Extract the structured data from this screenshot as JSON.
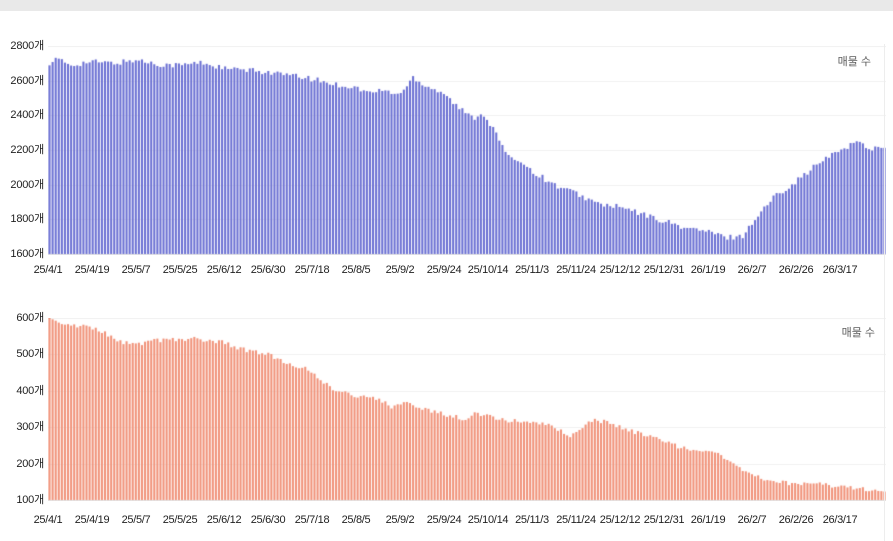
{
  "page": {
    "background": "#ffffff",
    "top_strip_color": "#e9e9e9"
  },
  "chart_data": [
    {
      "type": "bar",
      "title": "",
      "legend": "매물 수",
      "legend_position": "top-right",
      "unit": "개",
      "bar_color": "#696ed2",
      "grid": true,
      "ylim": [
        1600,
        2800
      ],
      "y_ticks": [
        1600,
        1800,
        2000,
        2200,
        2400,
        2600,
        2800
      ],
      "x_tick_labels": [
        "25/4/1",
        "25/4/19",
        "25/5/7",
        "25/5/25",
        "25/6/12",
        "25/6/30",
        "25/7/18",
        "25/8/5",
        "25/9/2",
        "25/9/24",
        "25/10/14",
        "25/11/3",
        "25/11/24",
        "25/12/12",
        "25/12/31",
        "26/1/19",
        "26/2/7",
        "26/2/26",
        "26/3/17"
      ],
      "anchors_unit": "x-tick-index (daily bars interpolated between anchors)",
      "anchors": [
        [
          0,
          2700
        ],
        [
          0.2,
          2725
        ],
        [
          0.5,
          2690
        ],
        [
          1,
          2710
        ],
        [
          1.5,
          2700
        ],
        [
          2,
          2720
        ],
        [
          2.5,
          2695
        ],
        [
          3,
          2690
        ],
        [
          3.5,
          2705
        ],
        [
          4,
          2670
        ],
        [
          4.5,
          2660
        ],
        [
          5,
          2650
        ],
        [
          5.5,
          2630
        ],
        [
          6,
          2610
        ],
        [
          6.5,
          2580
        ],
        [
          7,
          2560
        ],
        [
          7.3,
          2530
        ],
        [
          7.6,
          2545
        ],
        [
          8,
          2520
        ],
        [
          8.3,
          2620
        ],
        [
          8.6,
          2570
        ],
        [
          9,
          2530
        ],
        [
          9.3,
          2450
        ],
        [
          9.65,
          2385
        ],
        [
          9.9,
          2410
        ],
        [
          10.1,
          2330
        ],
        [
          10.3,
          2240
        ],
        [
          10.5,
          2140
        ],
        [
          10.7,
          2150
        ],
        [
          11,
          2080
        ],
        [
          11.5,
          2000
        ],
        [
          12,
          1950
        ],
        [
          12.5,
          1890
        ],
        [
          13,
          1870
        ],
        [
          13.5,
          1830
        ],
        [
          14,
          1790
        ],
        [
          14.5,
          1750
        ],
        [
          15,
          1730
        ],
        [
          15.4,
          1695
        ],
        [
          15.8,
          1705
        ],
        [
          16,
          1780
        ],
        [
          16.5,
          1930
        ],
        [
          17,
          2020
        ],
        [
          17.5,
          2120
        ],
        [
          18,
          2200
        ],
        [
          18.4,
          2250
        ],
        [
          18.7,
          2205
        ],
        [
          19.05,
          2230
        ]
      ],
      "bar_count": 272,
      "noise_amplitude": 16
    },
    {
      "type": "bar",
      "title": "",
      "legend": "매물 수",
      "legend_position": "top-right",
      "unit": "개",
      "bar_color": "#f09178",
      "grid": true,
      "ylim": [
        100,
        600
      ],
      "y_ticks": [
        100,
        200,
        300,
        400,
        500,
        600
      ],
      "x_tick_labels": [
        "25/4/1",
        "25/4/19",
        "25/5/7",
        "25/5/25",
        "25/6/12",
        "25/6/30",
        "25/7/18",
        "25/8/5",
        "25/9/2",
        "25/9/24",
        "25/10/14",
        "25/11/3",
        "25/11/24",
        "25/12/12",
        "25/12/31",
        "26/1/19",
        "26/2/7",
        "26/2/26",
        "26/3/17"
      ],
      "anchors_unit": "x-tick-index (daily bars interpolated between anchors)",
      "anchors": [
        [
          0,
          598
        ],
        [
          0.3,
          585
        ],
        [
          0.5,
          580
        ],
        [
          1,
          575
        ],
        [
          1.3,
          558
        ],
        [
          1.6,
          535
        ],
        [
          2,
          525
        ],
        [
          2.4,
          537
        ],
        [
          3,
          540
        ],
        [
          3.3,
          545
        ],
        [
          3.6,
          538
        ],
        [
          4,
          533
        ],
        [
          4.4,
          515
        ],
        [
          4.8,
          505
        ],
        [
          5,
          500
        ],
        [
          5.4,
          480
        ],
        [
          5.8,
          463
        ],
        [
          6,
          455
        ],
        [
          6.3,
          420
        ],
        [
          6.6,
          397
        ],
        [
          7,
          387
        ],
        [
          7.5,
          380
        ],
        [
          7.8,
          357
        ],
        [
          8.1,
          372
        ],
        [
          8.5,
          350
        ],
        [
          9,
          335
        ],
        [
          9.5,
          322
        ],
        [
          9.7,
          338
        ],
        [
          10,
          330
        ],
        [
          10.5,
          318
        ],
        [
          11,
          315
        ],
        [
          11.5,
          300
        ],
        [
          11.85,
          276
        ],
        [
          12.1,
          300
        ],
        [
          12.4,
          318
        ],
        [
          12.8,
          314
        ],
        [
          13,
          300
        ],
        [
          13.5,
          280
        ],
        [
          14,
          260
        ],
        [
          14.5,
          240
        ],
        [
          15,
          228
        ],
        [
          15.2,
          233
        ],
        [
          15.5,
          208
        ],
        [
          16,
          165
        ],
        [
          16.3,
          158
        ],
        [
          16.6,
          150
        ],
        [
          17,
          142
        ],
        [
          17.3,
          150
        ],
        [
          17.6,
          145
        ],
        [
          18,
          136
        ],
        [
          18.5,
          130
        ],
        [
          19.05,
          129
        ]
      ],
      "bar_count": 272,
      "noise_amplitude": 6
    }
  ]
}
